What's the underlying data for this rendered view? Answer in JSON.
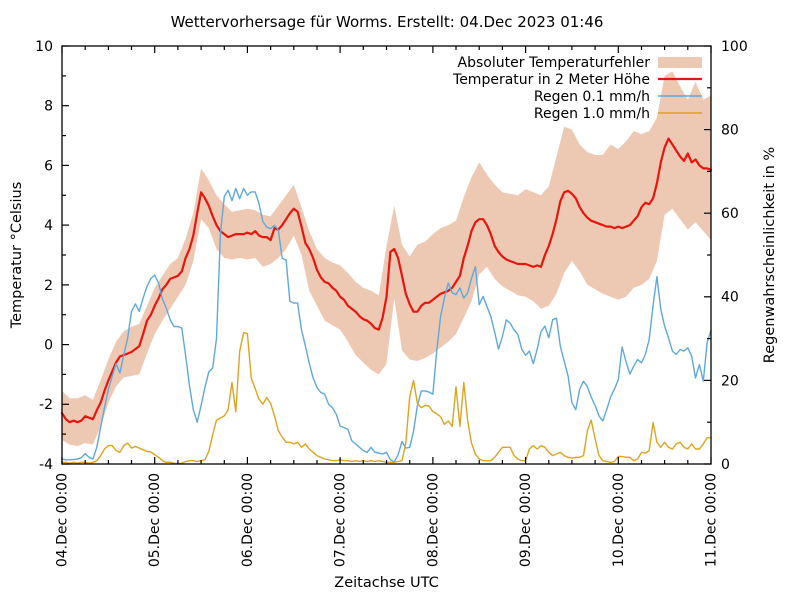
{
  "title": "Wettervorhersage für Worms. Erstellt: 04.Dec 2023 01:46",
  "axes": {
    "x_label": "Zeitachse UTC",
    "y_left_label": "Temperatur °Celsius",
    "y_right_label": "Regenwahrscheinlichkeit in %",
    "x_ticks": [
      {
        "hour": 0,
        "label": "04.Dec 00:00"
      },
      {
        "hour": 24,
        "label": "05.Dec 00:00"
      },
      {
        "hour": 48,
        "label": "06.Dec 00:00"
      },
      {
        "hour": 72,
        "label": "07.Dec 00:00"
      },
      {
        "hour": 96,
        "label": "08.Dec 00:00"
      },
      {
        "hour": 120,
        "label": "09.Dec 00:00"
      },
      {
        "hour": 144,
        "label": "10.Dec 00:00"
      },
      {
        "hour": 168,
        "label": "11.Dec 00:00"
      }
    ],
    "x_minor_step_hours": 6,
    "x_range_hours": [
      0,
      168
    ],
    "y_left_ticks": [
      -4,
      -2,
      0,
      2,
      4,
      6,
      8,
      10
    ],
    "y_left_minor_step": 1,
    "y_left_range": [
      -4,
      10
    ],
    "y_right_ticks": [
      0,
      20,
      40,
      60,
      80,
      100
    ],
    "y_right_minor_step": 10,
    "y_right_range": [
      0,
      100
    ],
    "grid": "off"
  },
  "legend": {
    "position": "top-right-inside",
    "entries": [
      {
        "key": "error-band",
        "label": "Absoluter Temperaturfehler",
        "swatch": "band",
        "color": "#edc9b4"
      },
      {
        "key": "temperature-2m",
        "label": "Temperatur in 2 Meter Höhe",
        "swatch": "line",
        "color": "#e7150e"
      },
      {
        "key": "rain-01",
        "label": "Regen 0.1 mm/h",
        "swatch": "line",
        "color": "#5fa8dc"
      },
      {
        "key": "rain-10",
        "label": "Regen 1.0 mm/h",
        "swatch": "line",
        "color": "#dea320"
      }
    ]
  },
  "chart_data": {
    "type": "line",
    "title": "Wettervorhersage für Worms. Erstellt: 04.Dec 2023 01:46",
    "xlabel": "Zeitachse UTC",
    "x_unit": "hours since 04.Dec 2023 00:00 UTC",
    "x_range_hours": [
      0,
      168
    ],
    "sample_step_hours": 1,
    "series": [
      {
        "key": "temperature-2m",
        "name": "Temperatur in 2 Meter Höhe",
        "axis": "left",
        "unit": "°C",
        "color": "#e7150e",
        "width": 2.2,
        "values": [
          -2.3,
          -2.5,
          -2.6,
          -2.55,
          -2.6,
          -2.55,
          -2.4,
          -2.45,
          -2.5,
          -2.2,
          -1.95,
          -1.55,
          -1.2,
          -0.9,
          -0.6,
          -0.4,
          -0.35,
          -0.3,
          -0.25,
          -0.15,
          -0.05,
          0.35,
          0.8,
          1.0,
          1.3,
          1.55,
          1.85,
          2.0,
          2.2,
          2.25,
          2.3,
          2.45,
          2.9,
          3.2,
          3.65,
          4.4,
          5.1,
          4.9,
          4.65,
          4.3,
          4.0,
          3.8,
          3.7,
          3.6,
          3.65,
          3.7,
          3.7,
          3.7,
          3.75,
          3.7,
          3.8,
          3.65,
          3.6,
          3.6,
          3.5,
          3.9,
          3.85,
          4.0,
          4.2,
          4.4,
          4.55,
          4.45,
          3.95,
          3.4,
          3.2,
          2.9,
          2.5,
          2.25,
          2.1,
          2.05,
          1.9,
          1.8,
          1.6,
          1.5,
          1.3,
          1.2,
          1.1,
          0.95,
          0.85,
          0.8,
          0.7,
          0.55,
          0.5,
          0.9,
          1.6,
          3.1,
          3.2,
          2.9,
          2.3,
          1.7,
          1.35,
          1.1,
          1.1,
          1.3,
          1.4,
          1.4,
          1.5,
          1.6,
          1.7,
          1.75,
          1.8,
          1.9,
          2.1,
          2.3,
          2.9,
          3.3,
          3.8,
          4.1,
          4.2,
          4.2,
          4.0,
          3.7,
          3.3,
          3.1,
          2.95,
          2.85,
          2.8,
          2.75,
          2.7,
          2.7,
          2.7,
          2.65,
          2.6,
          2.65,
          2.6,
          3.0,
          3.3,
          3.7,
          4.2,
          4.8,
          5.1,
          5.15,
          5.05,
          4.9,
          4.6,
          4.4,
          4.25,
          4.15,
          4.1,
          4.05,
          4.0,
          3.95,
          3.95,
          3.9,
          3.95,
          3.9,
          3.95,
          4.0,
          4.15,
          4.3,
          4.6,
          4.75,
          4.7,
          4.9,
          5.4,
          6.1,
          6.6,
          6.9,
          6.7,
          6.5,
          6.3,
          6.15,
          6.4,
          6.1,
          6.2,
          6.0,
          5.9,
          5.9,
          5.85
        ]
      },
      {
        "key": "rain-01",
        "name": "Regen 0.1 mm/h",
        "axis": "right",
        "unit": "%",
        "color": "#5fa8dc",
        "width": 1.4,
        "values": [
          1.2,
          1.0,
          1.0,
          1.1,
          1.2,
          1.5,
          2.5,
          1.6,
          1.2,
          4.0,
          8.7,
          13.5,
          17.9,
          21.0,
          24.0,
          21.8,
          26.2,
          30.2,
          36.5,
          38.3,
          36.5,
          39.7,
          42.5,
          44.4,
          45.2,
          43.3,
          39.5,
          37.3,
          34.5,
          32.9,
          32.9,
          32.5,
          26.0,
          18.7,
          13.0,
          10.0,
          14.0,
          18.3,
          22.0,
          23.0,
          30.0,
          55.0,
          64.0,
          65.5,
          63.0,
          65.9,
          63.5,
          65.9,
          64.3,
          65.1,
          65.1,
          62.3,
          58.0,
          56.7,
          56.3,
          57.1,
          56.0,
          49.2,
          48.8,
          38.9,
          38.5,
          38.5,
          32.1,
          28.2,
          24.2,
          20.6,
          18.3,
          17.1,
          16.7,
          14.3,
          13.5,
          11.9,
          9.1,
          8.7,
          8.3,
          5.6,
          4.8,
          4.0,
          3.2,
          2.8,
          4.0,
          2.8,
          2.6,
          2.4,
          2.8,
          1.0,
          0.5,
          2.2,
          5.4,
          3.8,
          4.0,
          7.8,
          14.0,
          17.5,
          17.5,
          17.2,
          16.7,
          27.0,
          35.3,
          39.7,
          43.3,
          41.0,
          40.5,
          42.1,
          39.7,
          40.9,
          44.4,
          47.2,
          38.1,
          40.1,
          37.7,
          35.3,
          31.5,
          27.5,
          30.5,
          34.5,
          33.7,
          32.1,
          31.0,
          27.5,
          26.0,
          27.0,
          24.0,
          27.5,
          31.7,
          33.0,
          30.2,
          34.5,
          34.9,
          28.2,
          24.6,
          21.0,
          14.7,
          13.0,
          17.9,
          19.8,
          18.5,
          16.0,
          14.0,
          11.5,
          10.3,
          13.0,
          16.0,
          17.9,
          20.2,
          28.0,
          24.5,
          21.5,
          23.4,
          25.0,
          24.2,
          26.2,
          29.8,
          38.0,
          44.8,
          37.0,
          33.0,
          30.2,
          27.0,
          26.2,
          27.4,
          27.0,
          27.8,
          25.8,
          20.6,
          23.8,
          19.8,
          29.0,
          32.0
        ]
      },
      {
        "key": "rain-10",
        "name": "Regen 1.0 mm/h",
        "axis": "right",
        "unit": "%",
        "color": "#dea320",
        "width": 1.4,
        "values": [
          0.4,
          0.4,
          0.2,
          0.4,
          0.2,
          0.4,
          0.4,
          0.2,
          0.4,
          0.8,
          2.0,
          3.6,
          4.4,
          4.4,
          3.2,
          2.8,
          4.4,
          5.0,
          3.8,
          4.2,
          3.8,
          3.4,
          3.0,
          2.9,
          2.2,
          1.6,
          0.8,
          0.4,
          0.4,
          0.2,
          0.1,
          0.2,
          0.6,
          0.8,
          0.8,
          0.6,
          0.8,
          1.0,
          3.0,
          7.0,
          10.5,
          11.0,
          11.5,
          13.0,
          19.5,
          12.5,
          27.0,
          31.4,
          31.2,
          20.5,
          18.0,
          15.5,
          14.3,
          15.9,
          14.5,
          11.5,
          8.0,
          6.4,
          5.2,
          5.2,
          4.8,
          5.2,
          4.0,
          4.8,
          3.6,
          2.8,
          2.0,
          1.6,
          1.2,
          1.0,
          0.8,
          0.8,
          1.0,
          0.8,
          0.8,
          0.6,
          0.8,
          0.6,
          0.8,
          0.6,
          0.8,
          0.6,
          0.8,
          0.6,
          0.4,
          0.4,
          0.4,
          0.6,
          0.8,
          5.0,
          16.0,
          20.0,
          14.5,
          13.5,
          14.0,
          13.9,
          12.5,
          12.0,
          11.3,
          9.5,
          10.3,
          9.0,
          18.5,
          9.0,
          19.5,
          10.5,
          5.0,
          2.4,
          1.2,
          0.8,
          0.8,
          0.8,
          1.6,
          2.8,
          4.0,
          4.0,
          4.0,
          2.0,
          1.2,
          0.8,
          0.8,
          3.6,
          4.4,
          3.6,
          4.4,
          4.0,
          2.8,
          2.0,
          2.4,
          2.8,
          2.0,
          1.6,
          1.4,
          1.6,
          1.6,
          2.0,
          8.0,
          10.5,
          6.0,
          2.0,
          0.8,
          0.6,
          0.4,
          0.6,
          1.8,
          1.8,
          1.6,
          1.6,
          0.8,
          1.2,
          2.8,
          2.6,
          3.2,
          9.9,
          5.2,
          4.0,
          5.2,
          4.0,
          3.6,
          4.8,
          5.2,
          4.0,
          3.6,
          4.8,
          3.6,
          3.6,
          4.8,
          6.3,
          6.3
        ]
      }
    ],
    "band": {
      "key": "error-band",
      "name": "Absoluter Temperaturfehler",
      "axis": "left",
      "unit": "°C",
      "color": "#edc9b4",
      "sample_step_hours": 2,
      "upper": [
        -1.55,
        -1.8,
        -1.8,
        -1.7,
        -1.85,
        -1.2,
        -0.5,
        0.1,
        0.45,
        0.6,
        0.7,
        1.3,
        1.9,
        2.3,
        2.7,
        2.9,
        3.55,
        4.4,
        5.9,
        5.5,
        5.0,
        4.7,
        4.45,
        4.5,
        4.55,
        4.5,
        4.35,
        4.3,
        4.65,
        5.0,
        5.35,
        4.6,
        3.8,
        3.2,
        2.9,
        2.75,
        2.65,
        2.4,
        2.1,
        1.9,
        1.8,
        1.65,
        3.3,
        4.65,
        3.35,
        2.95,
        3.35,
        3.45,
        3.7,
        3.9,
        4.0,
        4.15,
        4.95,
        5.6,
        6.1,
        5.7,
        5.35,
        5.1,
        5.05,
        5.0,
        5.2,
        5.1,
        5.0,
        5.3,
        6.3,
        7.3,
        7.2,
        6.7,
        6.45,
        6.35,
        6.35,
        6.7,
        6.55,
        6.8,
        7.15,
        7.05,
        7.15,
        7.6,
        9.0,
        9.15,
        8.65,
        8.2,
        8.8,
        8.2,
        8.35
      ],
      "lower": [
        -3.2,
        -3.35,
        -3.4,
        -3.3,
        -3.35,
        -2.75,
        -1.95,
        -1.4,
        -1.1,
        -1.05,
        -1.0,
        -0.3,
        0.35,
        0.8,
        1.2,
        1.6,
        2.0,
        2.8,
        4.2,
        3.9,
        3.2,
        2.9,
        2.85,
        2.9,
        2.85,
        2.9,
        2.6,
        2.7,
        2.9,
        3.2,
        3.65,
        3.0,
        1.8,
        1.3,
        0.8,
        0.65,
        0.5,
        0.1,
        -0.35,
        -0.6,
        -0.85,
        -1.0,
        -0.65,
        1.55,
        -0.2,
        -0.5,
        -0.55,
        -0.45,
        -0.3,
        -0.1,
        0.1,
        0.35,
        0.9,
        1.45,
        2.35,
        2.6,
        2.2,
        1.95,
        1.8,
        1.65,
        1.6,
        1.45,
        1.2,
        1.3,
        1.7,
        2.4,
        2.8,
        2.45,
        2.0,
        1.85,
        1.7,
        1.6,
        1.5,
        1.6,
        1.9,
        2.0,
        2.2,
        2.8,
        4.35,
        4.55,
        4.2,
        3.85,
        4.1,
        3.8,
        3.5
      ]
    }
  }
}
